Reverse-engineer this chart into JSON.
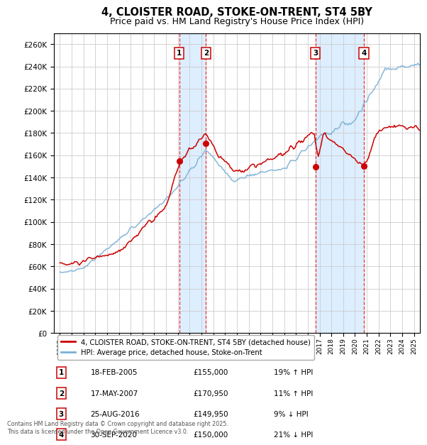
{
  "title": "4, CLOISTER ROAD, STOKE-ON-TRENT, ST4 5BY",
  "subtitle": "Price paid vs. HM Land Registry's House Price Index (HPI)",
  "hpi_label": "HPI: Average price, detached house, Stoke-on-Trent",
  "property_label": "4, CLOISTER ROAD, STOKE-ON-TRENT, ST4 5BY (detached house)",
  "footer": "Contains HM Land Registry data © Crown copyright and database right 2025.\nThis data is licensed under the Open Government Licence v3.0.",
  "transactions": [
    {
      "num": 1,
      "date": "18-FEB-2005",
      "price": 155000,
      "hpi_rel": "19% ↑ HPI",
      "year": 2005.12
    },
    {
      "num": 2,
      "date": "17-MAY-2007",
      "price": 170950,
      "hpi_rel": "11% ↑ HPI",
      "year": 2007.38
    },
    {
      "num": 3,
      "date": "25-AUG-2016",
      "price": 149950,
      "hpi_rel": "9% ↓ HPI",
      "year": 2016.65
    },
    {
      "num": 4,
      "date": "30-SEP-2020",
      "price": 150000,
      "hpi_rel": "21% ↓ HPI",
      "year": 2020.75
    }
  ],
  "ylim": [
    0,
    270000
  ],
  "yticks": [
    0,
    20000,
    40000,
    60000,
    80000,
    100000,
    120000,
    140000,
    160000,
    180000,
    200000,
    220000,
    240000,
    260000
  ],
  "xlim": [
    1994.5,
    2025.5
  ],
  "red_color": "#cc0000",
  "blue_color": "#7ab0d4",
  "shaded_color": "#ddeeff",
  "grid_color": "#cccccc",
  "title_fontsize": 10.5,
  "subtitle_fontsize": 9
}
